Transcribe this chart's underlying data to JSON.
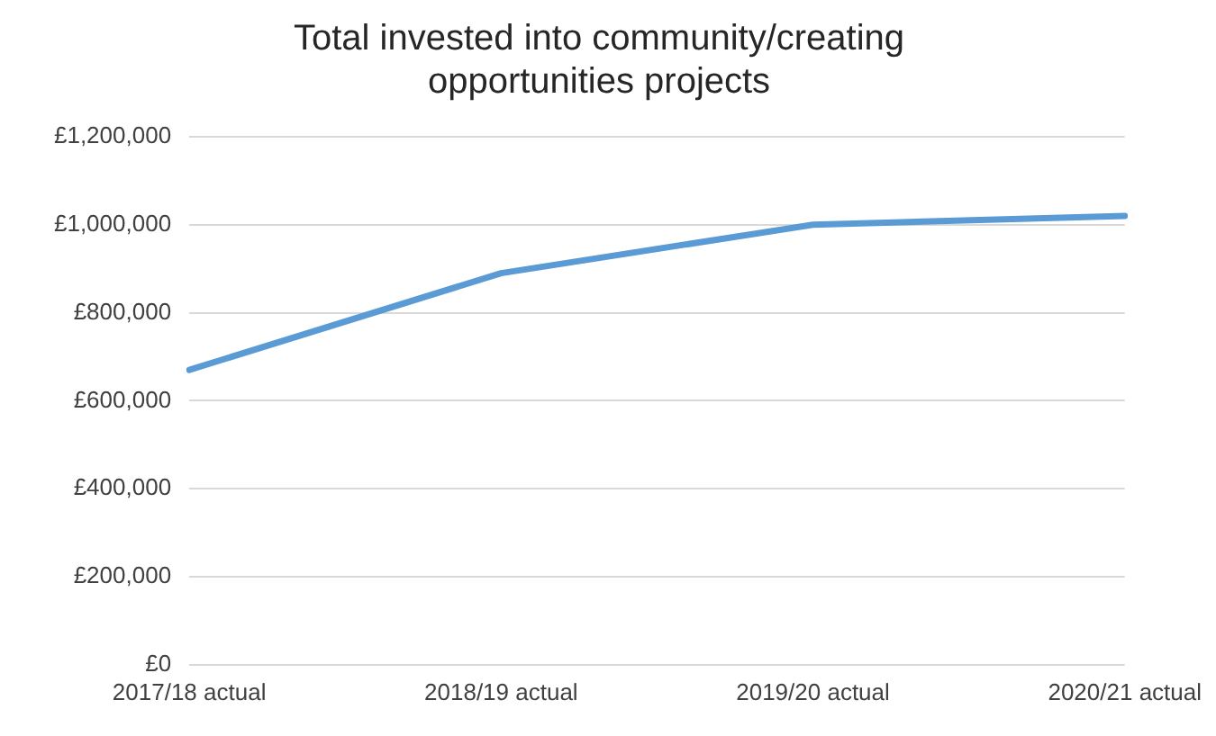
{
  "chart_data": {
    "type": "line",
    "title": "Total invested into community/creating\nopportunities projects",
    "categories": [
      "2017/18 actual",
      "2018/19 actual",
      "2019/20 actual",
      "2020/21 actual"
    ],
    "series": [
      {
        "color": "#5b9bd5",
        "values": [
          670000,
          890000,
          1000000,
          1020000
        ]
      }
    ],
    "ylim": [
      0,
      1200000
    ],
    "yticks": [
      {
        "value": 0,
        "label": "£0"
      },
      {
        "value": 200000,
        "label": "£200,000"
      },
      {
        "value": 400000,
        "label": "£400,000"
      },
      {
        "value": 600000,
        "label": "£600,000"
      },
      {
        "value": 800000,
        "label": "£800,000"
      },
      {
        "value": 1000000,
        "label": "£1,000,000"
      },
      {
        "value": 1200000,
        "label": "£1,200,000"
      }
    ],
    "grid": "y",
    "legend": false,
    "marker": "none",
    "line_style": "solid"
  }
}
